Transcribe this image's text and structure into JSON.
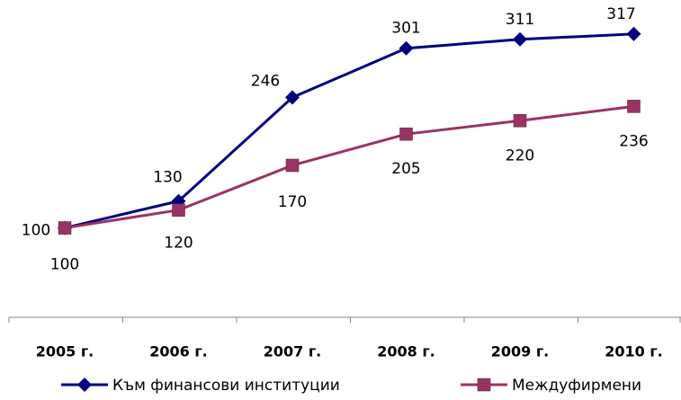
{
  "chart_data": {
    "type": "line",
    "categories": [
      "2005 г.",
      "2006 г.",
      "2007 г.",
      "2008 г.",
      "2009 г.",
      "2010 г."
    ],
    "series": [
      {
        "name": "Към финансови институции",
        "color": "#000080",
        "marker": "diamond",
        "values": [
          100,
          130,
          246,
          301,
          311,
          317
        ]
      },
      {
        "name": "Междуфирмени",
        "color": "#993366",
        "marker": "square",
        "values": [
          100,
          120,
          170,
          205,
          220,
          236
        ]
      }
    ],
    "ylim": [
      0,
      350
    ]
  }
}
